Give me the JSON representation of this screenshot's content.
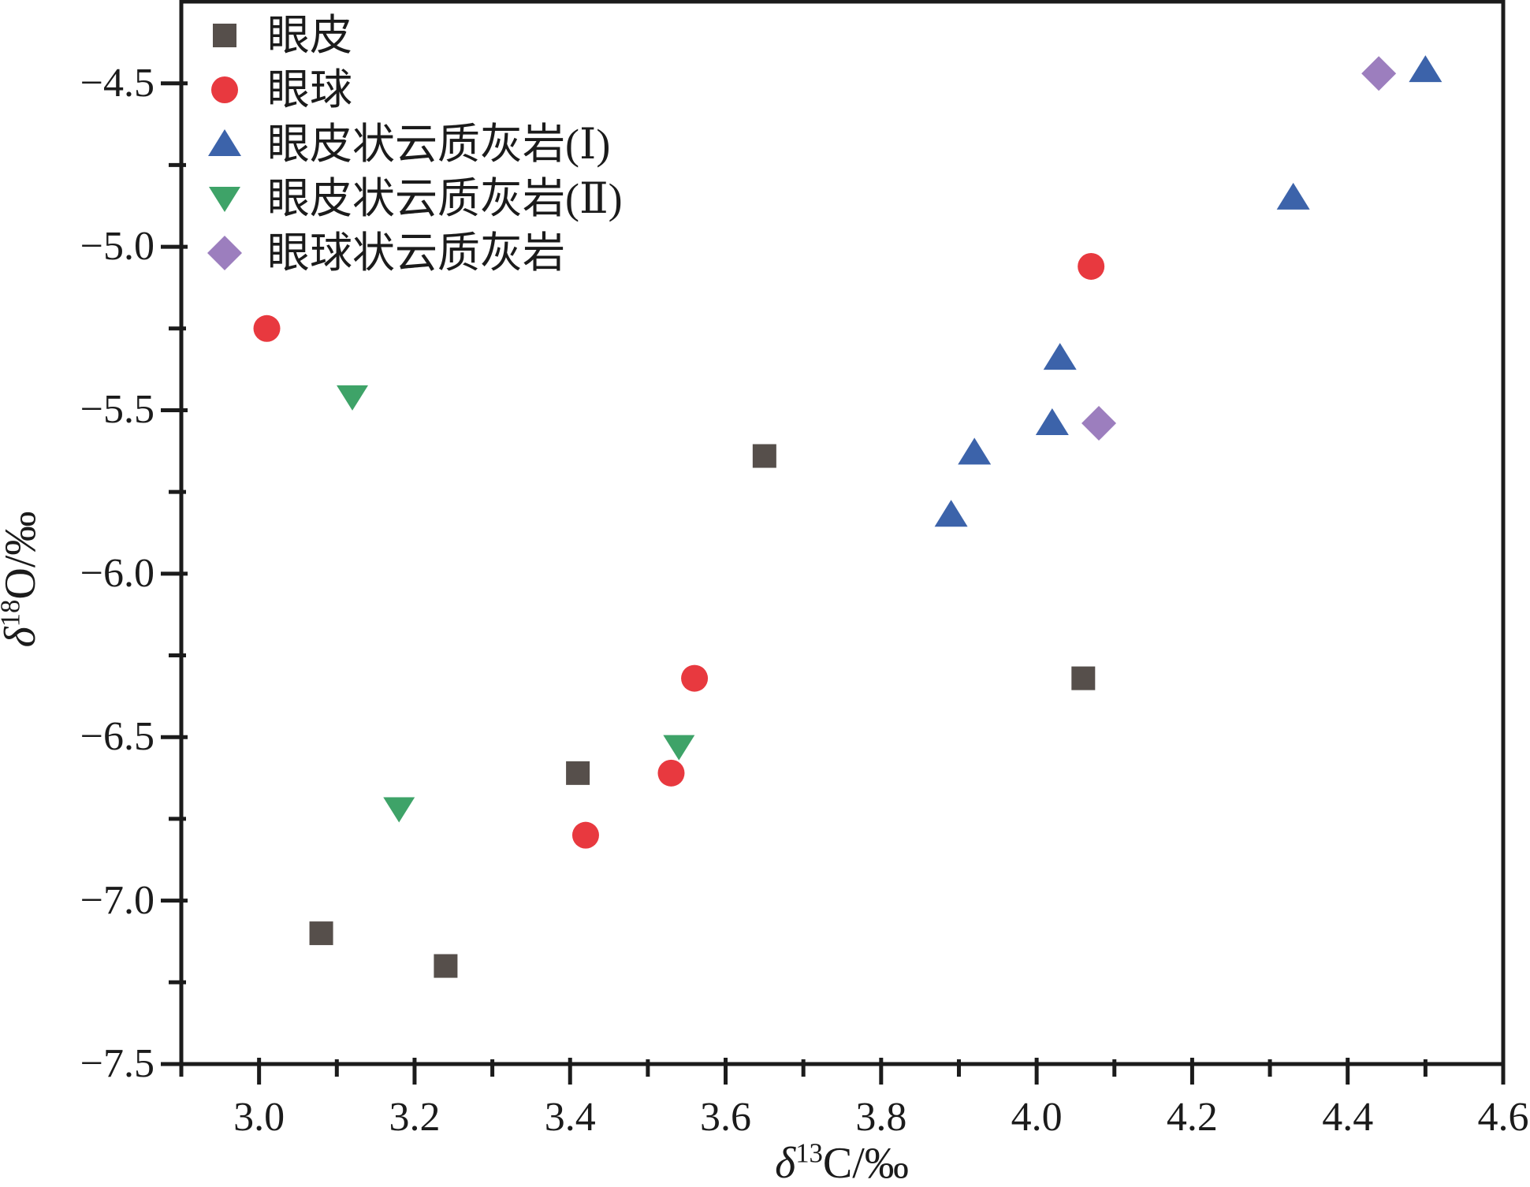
{
  "figure": {
    "background": "#ffffff"
  },
  "axis_color": "#1b1b1b",
  "chart_data": {
    "type": "scatter",
    "title": "",
    "xlabel": {
      "symbol": "δ",
      "sup": "13",
      "rest": "C/‰"
    },
    "ylabel": {
      "symbol": "δ",
      "sup": "18",
      "rest": "O/‰"
    },
    "xlim": [
      2.9,
      4.6
    ],
    "ylim": [
      -7.5,
      -4.25
    ],
    "xtick_values": [
      3.0,
      3.2,
      3.4,
      3.6,
      3.8,
      4.0,
      4.2,
      4.4,
      4.6
    ],
    "xtick_labels": [
      "3.0",
      "3.2",
      "3.4",
      "3.6",
      "3.8",
      "4.0",
      "4.2",
      "4.4",
      "4.6"
    ],
    "xtick_minor": [
      2.9,
      3.1,
      3.3,
      3.5,
      3.7,
      3.9,
      4.1,
      4.3,
      4.5
    ],
    "ytick_values": [
      -4.5,
      -5.0,
      -5.5,
      -6.0,
      -6.5,
      -7.0,
      -7.5
    ],
    "ytick_labels": [
      "−4.5",
      "−5.0",
      "−5.5",
      "−6.0",
      "−6.5",
      "−7.0",
      "−7.5"
    ],
    "ytick_minor": [
      -4.75,
      -5.25,
      -5.75,
      -6.25,
      -6.75,
      -7.25
    ],
    "grid": false,
    "legend_position": "top-left",
    "series": [
      {
        "name": "眼皮",
        "marker": "square",
        "color": "#564f4b",
        "points": [
          [
            3.08,
            -7.1
          ],
          [
            3.24,
            -7.2
          ],
          [
            3.41,
            -6.61
          ],
          [
            3.65,
            -5.64
          ],
          [
            4.06,
            -6.32
          ]
        ]
      },
      {
        "name": "眼球",
        "marker": "circle",
        "color": "#e8393f",
        "points": [
          [
            3.01,
            -5.25
          ],
          [
            3.42,
            -6.8
          ],
          [
            3.53,
            -6.61
          ],
          [
            3.56,
            -6.32
          ],
          [
            4.07,
            -5.06
          ]
        ]
      },
      {
        "name": "眼皮状云质灰岩(Ⅰ)",
        "marker": "triangle-up",
        "color": "#3c63aa",
        "points": [
          [
            3.89,
            -5.82
          ],
          [
            3.92,
            -5.63
          ],
          [
            4.02,
            -5.54
          ],
          [
            4.03,
            -5.34
          ],
          [
            4.33,
            -4.85
          ],
          [
            4.5,
            -4.46
          ]
        ]
      },
      {
        "name": "眼皮状云质灰岩(Ⅱ)",
        "marker": "triangle-down",
        "color": "#3ea368",
        "points": [
          [
            3.12,
            -5.46
          ],
          [
            3.18,
            -6.72
          ],
          [
            3.54,
            -6.53
          ]
        ]
      },
      {
        "name": "眼球状云质灰岩",
        "marker": "diamond",
        "color": "#9c7ebe",
        "points": [
          [
            4.08,
            -5.54
          ],
          [
            4.44,
            -4.47
          ]
        ]
      }
    ]
  }
}
